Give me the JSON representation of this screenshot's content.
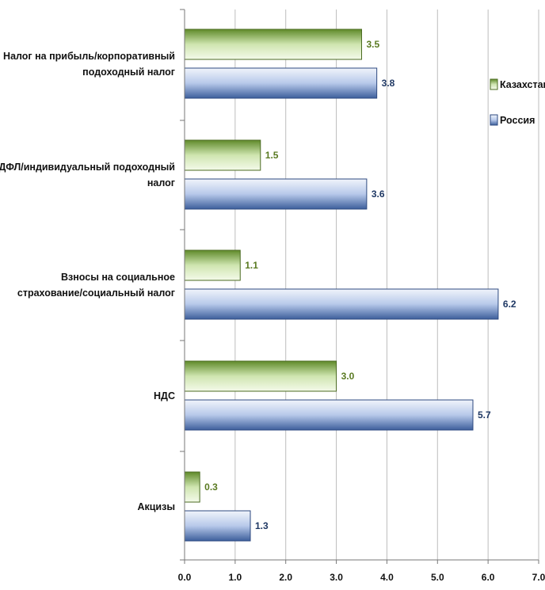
{
  "chart_data": {
    "type": "bar",
    "orientation": "horizontal",
    "categories": [
      [
        "Налог на прибыль/корпоративный",
        "подоходный налог"
      ],
      [
        "НДФЛ/индивидуальный подоходный",
        "налог"
      ],
      [
        "Взносы на социальное",
        "страхование/социальный налог"
      ],
      [
        "НДС"
      ],
      [
        "Акцизы"
      ]
    ],
    "series": [
      {
        "name": "Казахстан",
        "values": [
          3.5,
          1.5,
          1.1,
          3.0,
          0.3
        ],
        "color": "#8db45a",
        "label_color": "#5a7a22"
      },
      {
        "name": "Россия",
        "values": [
          3.8,
          3.6,
          6.2,
          5.7,
          1.3
        ],
        "color": "#6c8fcf",
        "label_color": "#1f3864"
      }
    ],
    "data_labels": {
      "Казахстан": [
        "3.5",
        "1.5",
        "1.1",
        "3.0",
        "0.3"
      ],
      "Россия": [
        "3.8",
        "3.6",
        "6.2",
        "5.7",
        "1.3"
      ]
    },
    "xlim": [
      0,
      7
    ],
    "xticks": [
      "0.0",
      "1.0",
      "2.0",
      "3.0",
      "4.0",
      "5.0",
      "6.0",
      "7.0"
    ],
    "grid": true,
    "legend_position": "top-right"
  }
}
